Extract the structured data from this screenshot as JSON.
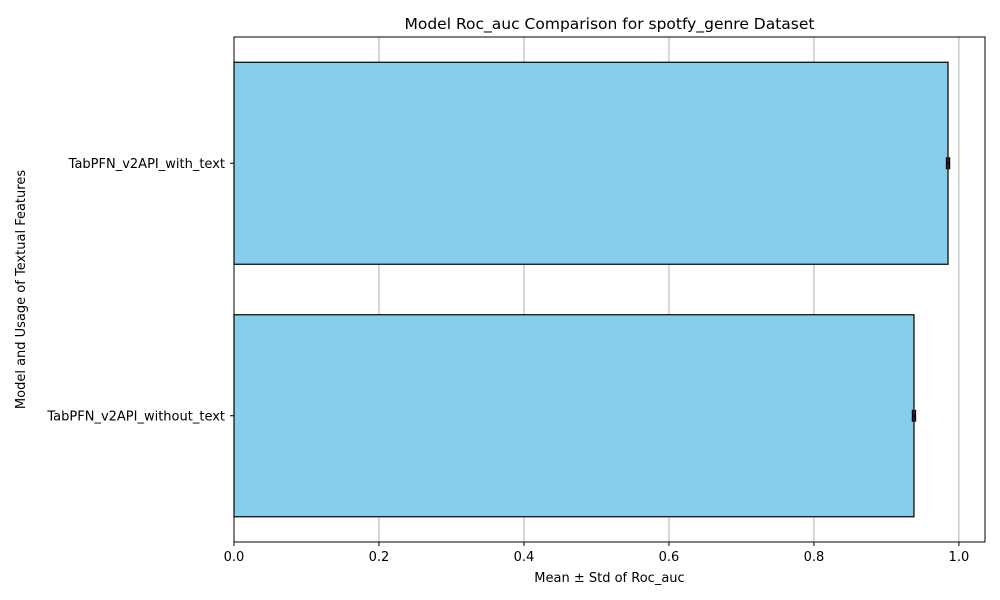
{
  "chart_data": {
    "type": "bar",
    "orientation": "horizontal",
    "title": "Model Roc_auc Comparison for spotfy_genre Dataset",
    "xlabel": "Mean ± Std of Roc_auc",
    "ylabel": "Model and Usage of Textual Features",
    "categories": [
      "TabPFN_v2API_with_text",
      "TabPFN_v2API_without_text"
    ],
    "values": [
      0.985,
      0.938
    ],
    "errors": [
      0.002,
      0.002
    ],
    "xlim": [
      0,
      1.036
    ],
    "xticks": [
      0.0,
      0.2,
      0.4,
      0.6,
      0.8,
      1.0
    ],
    "xtick_labels": [
      "0.0",
      "0.2",
      "0.4",
      "0.6",
      "0.8",
      "1.0"
    ],
    "grid": "vertical",
    "bar_color": "#87CEEB",
    "edge_color": "#000000"
  }
}
